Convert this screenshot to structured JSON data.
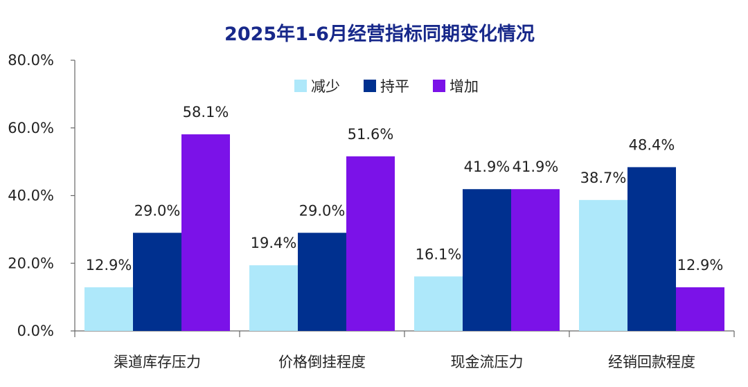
{
  "chart_data": {
    "type": "bar",
    "title": "2025年1-6月经营指标同期变化情况",
    "categories": [
      "渠道库存压力",
      "价格倒挂程度",
      "现金流压力",
      "经销回款程度"
    ],
    "series": [
      {
        "name": "减少",
        "values": [
          12.9,
          19.4,
          16.1,
          38.7
        ],
        "labels": [
          "12.9%",
          "19.4%",
          "16.1%",
          "38.7%"
        ],
        "color": "#aee8fa"
      },
      {
        "name": "持平",
        "values": [
          29.0,
          29.0,
          41.9,
          48.4
        ],
        "labels": [
          "29.0%",
          "29.0%",
          "41.9%",
          "48.4%"
        ],
        "color": "#00308f"
      },
      {
        "name": "增加",
        "values": [
          58.1,
          51.6,
          41.9,
          12.9
        ],
        "labels": [
          "58.1%",
          "51.6%",
          "41.9%",
          "12.9%"
        ],
        "color": "#7b12e8"
      }
    ],
    "ylim": [
      0,
      80
    ],
    "yticks": [
      0,
      20,
      40,
      60,
      80
    ],
    "ytick_labels": [
      "0.0%",
      "20.0%",
      "40.0%",
      "60.0%",
      "80.0%"
    ],
    "legend_position": "top-center",
    "grid": false
  }
}
